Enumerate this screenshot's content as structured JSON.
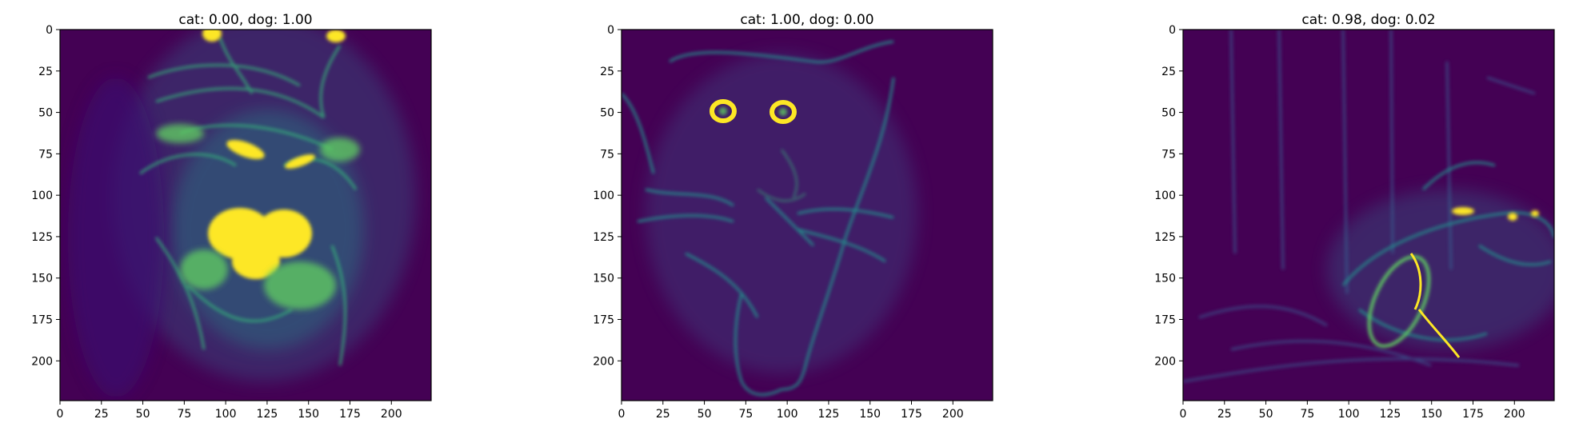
{
  "figure": {
    "panels": [
      {
        "id": "p1",
        "title": "cat: 0.00, dog: 1.00"
      },
      {
        "id": "p2",
        "title": "cat: 1.00, dog: 0.00"
      },
      {
        "id": "p3",
        "title": "cat: 0.98, dog: 0.02"
      }
    ]
  },
  "chart_data": [
    {
      "type": "heatmap",
      "title": "cat: 0.00, dog: 1.00",
      "colormap": "viridis",
      "xlim": [
        0,
        224
      ],
      "ylim": [
        224,
        0
      ],
      "xticks": [
        0,
        25,
        50,
        75,
        100,
        125,
        150,
        175,
        200
      ],
      "yticks": [
        0,
        25,
        50,
        75,
        100,
        125,
        150,
        175,
        200
      ],
      "scores": {
        "cat": 0.0,
        "dog": 1.0
      }
    },
    {
      "type": "heatmap",
      "title": "cat: 1.00, dog: 0.00",
      "colormap": "viridis",
      "xlim": [
        0,
        224
      ],
      "ylim": [
        224,
        0
      ],
      "xticks": [
        0,
        25,
        50,
        75,
        100,
        125,
        150,
        175,
        200
      ],
      "yticks": [
        0,
        25,
        50,
        75,
        100,
        125,
        150,
        175,
        200
      ],
      "scores": {
        "cat": 1.0,
        "dog": 0.0
      }
    },
    {
      "type": "heatmap",
      "title": "cat: 0.98, dog: 0.02",
      "colormap": "viridis",
      "xlim": [
        0,
        224
      ],
      "ylim": [
        224,
        0
      ],
      "xticks": [
        0,
        25,
        50,
        75,
        100,
        125,
        150,
        175,
        200
      ],
      "yticks": [
        0,
        25,
        50,
        75,
        100,
        125,
        150,
        175,
        200
      ],
      "scores": {
        "cat": 0.98,
        "dog": 0.02
      }
    }
  ],
  "colors": {
    "bg_dark": "#440154",
    "mid": "#31688e",
    "teal": "#21918c",
    "green": "#5ec962",
    "bright": "#fde725"
  }
}
